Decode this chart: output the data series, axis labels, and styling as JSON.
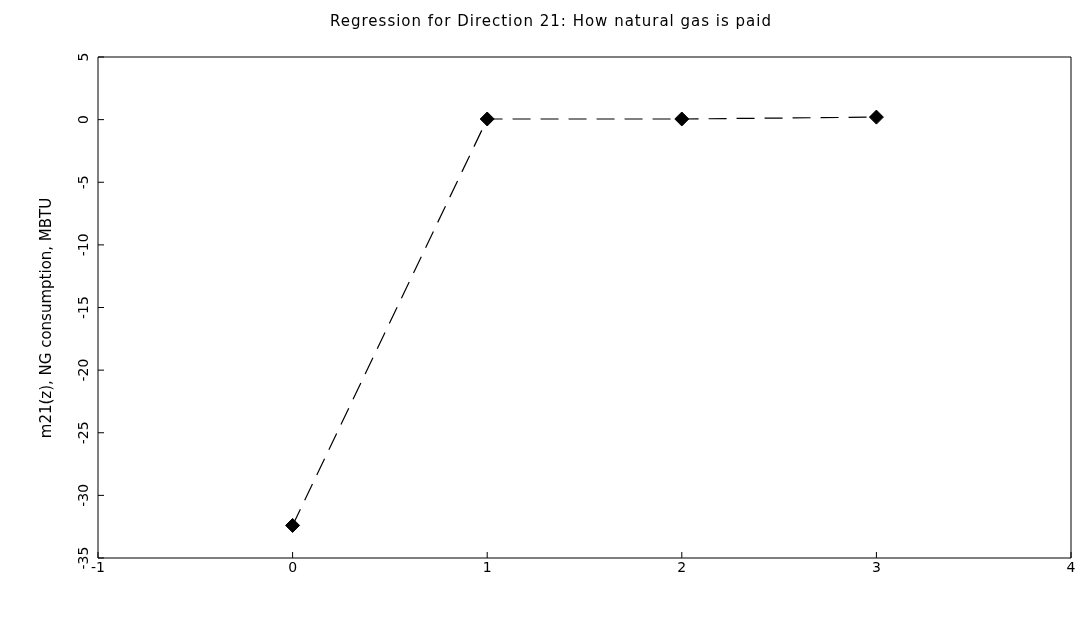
{
  "chart_data": {
    "type": "line",
    "title": "Regression for Direction 21: How natural gas is paid",
    "ylabel": "m21(z),  NG consumption, MBTU",
    "x": [
      0,
      1,
      2,
      3
    ],
    "series": [
      {
        "color": "#000000",
        "values": [
          -32.4,
          0.05,
          0.05,
          0.2
        ]
      }
    ],
    "xlim": [
      -1,
      4
    ],
    "xticks": [
      -1,
      0,
      1,
      2,
      3,
      4
    ],
    "ylim": [
      -35,
      5
    ],
    "yticks": [
      -35,
      -30,
      -25,
      -20,
      -15,
      -10,
      -5,
      0,
      5
    ],
    "grid": false,
    "legend": false,
    "marker": "diamond",
    "line_style": "dashed"
  }
}
